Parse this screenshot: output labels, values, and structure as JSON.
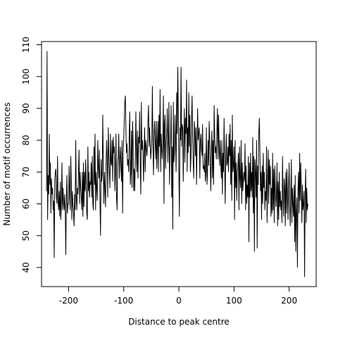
{
  "chart_data": {
    "type": "line",
    "title": "",
    "xlabel": "Distance to peak centre",
    "ylabel": "Number of motif occurrences",
    "xlim": [
      -249,
      249
    ],
    "ylim": [
      34,
      111
    ],
    "x_ticks": [
      -200,
      -100,
      0,
      100,
      200
    ],
    "y_ticks": [
      40,
      50,
      60,
      70,
      80,
      90,
      100,
      110
    ],
    "grid": false,
    "series": [
      {
        "x_start": -240,
        "x_step": 1,
        "values": [
          64,
          108,
          55,
          69,
          63,
          82,
          66,
          73,
          57,
          68,
          63,
          65,
          58,
          61,
          43,
          68,
          70,
          71,
          62,
          60,
          75,
          61,
          58,
          64,
          56,
          67,
          55,
          61,
          73,
          58,
          65,
          60,
          58,
          63,
          58,
          44,
          61,
          69,
          57,
          60,
          60,
          72,
          63,
          58,
          75,
          66,
          55,
          64,
          60,
          57,
          53,
          63,
          58,
          80,
          62,
          58,
          65,
          63,
          70,
          77,
          60,
          70,
          65,
          62,
          58,
          70,
          56,
          73,
          59,
          70,
          64,
          74,
          68,
          57,
          55,
          78,
          64,
          70,
          62,
          67,
          66,
          73,
          62,
          75,
          60,
          58,
          78,
          66,
          82,
          58,
          70,
          65,
          61,
          80,
          72,
          68,
          77,
          60,
          50,
          74,
          67,
          69,
          88,
          72,
          60,
          70,
          65,
          59,
          72,
          80,
          74,
          62,
          84,
          76,
          70,
          65,
          82,
          73,
          72,
          80,
          67,
          81,
          76,
          78,
          64,
          70,
          82,
          62,
          58,
          73,
          75,
          82,
          68,
          74,
          78,
          71,
          67,
          80,
          57,
          76,
          80,
          86,
          92,
          94,
          83,
          76,
          79,
          72,
          74,
          70,
          82,
          89,
          66,
          70,
          83,
          65,
          86,
          80,
          64,
          71,
          64,
          73,
          89,
          76,
          70,
          83,
          68,
          81,
          79,
          89,
          72,
          63,
          92,
          77,
          80,
          75,
          67,
          77,
          84,
          70,
          80,
          78,
          75,
          78,
          86,
          91,
          78,
          84,
          79,
          74,
          77,
          80,
          97,
          78,
          69,
          82,
          86,
          80,
          74,
          86,
          71,
          78,
          86,
          70,
          88,
          78,
          96,
          70,
          82,
          77,
          74,
          80,
          94,
          60,
          85,
          88,
          71,
          80,
          82,
          90,
          73,
          80,
          92,
          66,
          77,
          80,
          91,
          62,
          78,
          52,
          92,
          73,
          76,
          88,
          80,
          70,
          95,
          82,
          103,
          90,
          70,
          56,
          84,
          80,
          103,
          78,
          85,
          84,
          67,
          80,
          90,
          73,
          87,
          82,
          99,
          70,
          84,
          76,
          95,
          78,
          88,
          70,
          75,
          86,
          94,
          80,
          73,
          68,
          86,
          83,
          75,
          84,
          66,
          78,
          90,
          80,
          82,
          84,
          68,
          79,
          82,
          77,
          75,
          85,
          71,
          72,
          70,
          76,
          67,
          70,
          84,
          66,
          70,
          80,
          72,
          86,
          80,
          72,
          64,
          78,
          83,
          68,
          80,
          66,
          91,
          81,
          76,
          78,
          74,
          83,
          90,
          74,
          88,
          78,
          72,
          80,
          73,
          68,
          80,
          63,
          76,
          70,
          87,
          73,
          60,
          75,
          82,
          72,
          73,
          78,
          70,
          82,
          75,
          85,
          66,
          80,
          61,
          88,
          70,
          72,
          78,
          55,
          80,
          65,
          73,
          61,
          70,
          72,
          76,
          58,
          78,
          68,
          65,
          80,
          60,
          73,
          64,
          68,
          70,
          67,
          79,
          58,
          72,
          60,
          66,
          62,
          75,
          48,
          73,
          62,
          76,
          64,
          70,
          62,
          81,
          57,
          75,
          45,
          74,
          70,
          62,
          80,
          46,
          72,
          66,
          82,
          87,
          77,
          64,
          70,
          55,
          72,
          60,
          76,
          65,
          70,
          58,
          64,
          61,
          78,
          54,
          66,
          77,
          60,
          74,
          66,
          72,
          56,
          65,
          57,
          76,
          58,
          71,
          54,
          72,
          64,
          59,
          63,
          73,
          53,
          67,
          55,
          70,
          59,
          64,
          58,
          61,
          54,
          75,
          62,
          56,
          68,
          65,
          53,
          70,
          57,
          71,
          62,
          55,
          66,
          73,
          59,
          53,
          63,
          74,
          54,
          65,
          60,
          56,
          66,
          48,
          69,
          45,
          57,
          62,
          40,
          64,
          70,
          57,
          76,
          61,
          73,
          65,
          54,
          66,
          58,
          60,
          64,
          37,
          63,
          71,
          54,
          65,
          58,
          60
        ]
      }
    ]
  }
}
